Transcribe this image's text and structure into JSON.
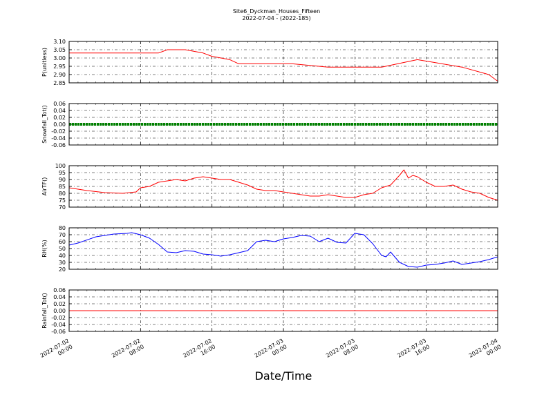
{
  "figure": {
    "title_line1": "Site6_Dyckman_Houses_Fifteen",
    "title_line2": "2022-07-04 - (2022-185)",
    "xlabel": "Date/Time",
    "x_ticks": [
      {
        "line1": "2022-07-02",
        "line2": "00:00"
      },
      {
        "line1": "2022-07-02",
        "line2": "08:00"
      },
      {
        "line1": "2022-07-02",
        "line2": "16:00"
      },
      {
        "line1": "2022-07-03",
        "line2": "00:00"
      },
      {
        "line1": "2022-07-03",
        "line2": "08:00"
      },
      {
        "line1": "2022-07-03",
        "line2": "16:00"
      },
      {
        "line1": "2022-07-04",
        "line2": "00:00"
      }
    ]
  },
  "chart_data": [
    {
      "type": "line",
      "ylabel": "P(unitless)",
      "ylim": [
        2.85,
        3.1
      ],
      "yticks": [
        "2.85",
        "2.90",
        "2.95",
        "3.00",
        "3.05",
        "3.10"
      ],
      "xlim": [
        "2022-07-02 00:00",
        "2022-07-04 00:00"
      ],
      "grid": true,
      "color": "#ff0000",
      "marker": "none",
      "x_hours": [
        0,
        4,
        8,
        10,
        11,
        13,
        15,
        16,
        18,
        19,
        21,
        25,
        29,
        32,
        34,
        35,
        39,
        44,
        47,
        48
      ],
      "values": [
        3.03,
        3.03,
        3.03,
        3.03,
        3.05,
        3.05,
        3.03,
        3.01,
        2.99,
        2.965,
        2.965,
        2.965,
        2.945,
        2.945,
        2.945,
        2.945,
        2.99,
        2.945,
        2.9,
        2.86
      ]
    },
    {
      "type": "scatter",
      "ylabel": "Snowfall_Tot()",
      "ylim": [
        -0.06,
        0.06
      ],
      "yticks": [
        "-0.06",
        "-0.04",
        "-0.02",
        "0.00",
        "0.02",
        "0.04",
        "0.06"
      ],
      "xlim": [
        "2022-07-02 00:00",
        "2022-07-04 00:00"
      ],
      "grid": true,
      "color": "#008000",
      "marker": "dot",
      "x_hours": [
        0,
        48
      ],
      "values": [
        0.0,
        0.0
      ]
    },
    {
      "type": "line",
      "ylabel": "AirTF()",
      "ylim": [
        70,
        100
      ],
      "yticks": [
        "70",
        "75",
        "80",
        "85",
        "90",
        "95",
        "100"
      ],
      "xlim": [
        "2022-07-02 00:00",
        "2022-07-04 00:00"
      ],
      "grid": true,
      "color": "#ff0000",
      "marker": "none",
      "x_hours": [
        0,
        2,
        4,
        6,
        7.5,
        8,
        9,
        10,
        11,
        12,
        13,
        14,
        15,
        16,
        17,
        18,
        19,
        20,
        21,
        22,
        23,
        24,
        25,
        26,
        27,
        28,
        29,
        30,
        31,
        32,
        33,
        34,
        35,
        36,
        37,
        37.5,
        38,
        38.5,
        39,
        40,
        41,
        42,
        43,
        44,
        45,
        46,
        47,
        48
      ],
      "values": [
        84,
        82,
        80.5,
        80,
        81,
        84,
        85,
        88,
        89,
        90,
        89,
        91,
        92,
        91,
        90,
        90,
        88,
        86,
        83,
        82,
        82,
        81,
        80,
        79,
        78,
        78,
        79,
        78,
        77,
        77,
        79,
        80,
        84,
        86,
        93,
        97,
        91,
        93,
        92,
        88,
        85,
        85,
        86,
        83,
        81,
        80,
        77,
        75
      ]
    },
    {
      "type": "line",
      "ylabel": "RH(%)",
      "ylim": [
        20,
        80
      ],
      "yticks": [
        "20",
        "30",
        "40",
        "50",
        "60",
        "70",
        "80"
      ],
      "xlim": [
        "2022-07-02 00:00",
        "2022-07-04 00:00"
      ],
      "grid": true,
      "color": "#0000ff",
      "marker": "none",
      "x_hours": [
        0,
        1,
        3,
        5,
        6.5,
        7,
        8,
        9,
        10,
        11,
        12,
        13,
        14,
        15,
        16,
        17,
        18,
        19,
        20,
        21,
        22,
        23,
        24,
        25,
        26,
        27,
        28,
        29,
        30,
        31,
        32,
        33,
        34,
        35,
        35.5,
        36,
        37,
        37.5,
        38,
        39,
        40,
        41,
        42,
        43,
        44,
        45,
        46,
        47,
        48
      ],
      "values": [
        55,
        58,
        67,
        71,
        72,
        73,
        70,
        65,
        56,
        45,
        44,
        47,
        46,
        42,
        41,
        39,
        41,
        44,
        47,
        60,
        62,
        60,
        64,
        66,
        69,
        68,
        60,
        65,
        59,
        58,
        72,
        70,
        57,
        40,
        38,
        45,
        30,
        27,
        24,
        23,
        26,
        27,
        29,
        32,
        27,
        29,
        31,
        34,
        38
      ]
    },
    {
      "type": "line",
      "ylabel": "Rainfall_Tot()",
      "ylim": [
        -0.06,
        0.06
      ],
      "yticks": [
        "-0.06",
        "-0.04",
        "-0.02",
        "0.00",
        "0.02",
        "0.04",
        "0.06"
      ],
      "xlim": [
        "2022-07-02 00:00",
        "2022-07-04 00:00"
      ],
      "grid": true,
      "color": "#ff0000",
      "marker": "none",
      "x_hours": [
        0,
        48
      ],
      "values": [
        0.0,
        0.0
      ]
    }
  ]
}
